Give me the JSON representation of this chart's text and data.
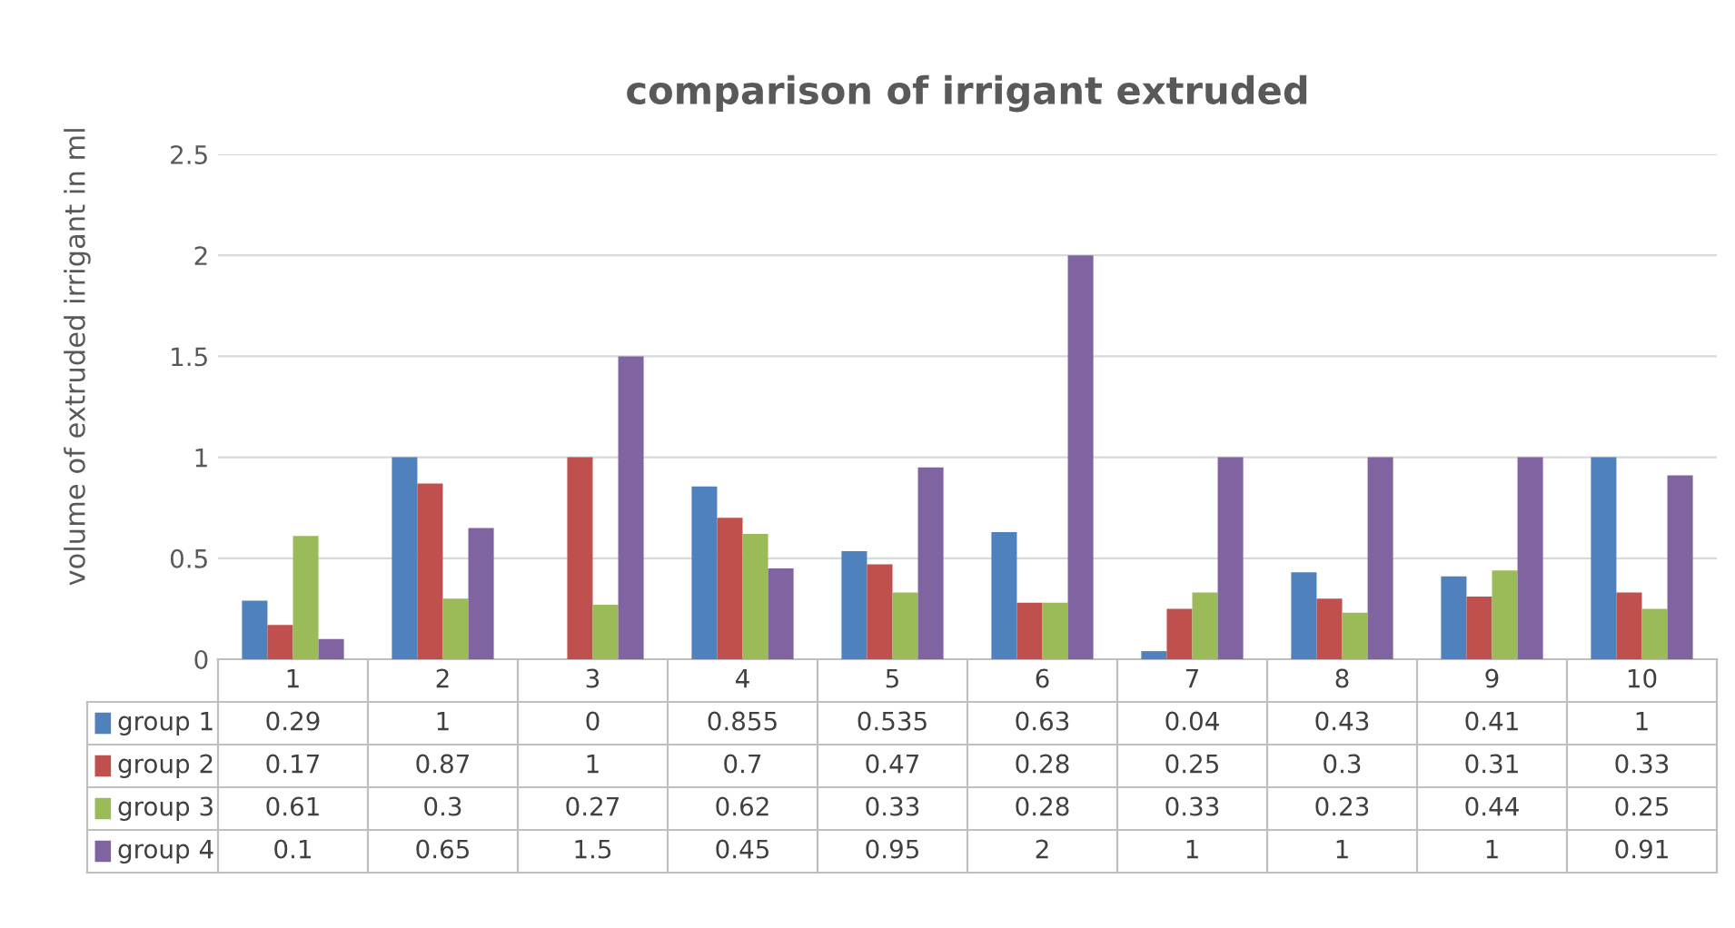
{
  "chart_data": {
    "type": "bar",
    "title": "comparison of irrigant extruded",
    "ylabel": "volume of extruded irrigant in ml",
    "categories": [
      "1",
      "2",
      "3",
      "4",
      "5",
      "6",
      "7",
      "8",
      "9",
      "10"
    ],
    "series": [
      {
        "name": "group 1",
        "color": "#4f81bd",
        "values": [
          0.29,
          1,
          0,
          0.855,
          0.535,
          0.63,
          0.04,
          0.43,
          0.41,
          1
        ]
      },
      {
        "name": "group 2",
        "color": "#c0504d",
        "values": [
          0.17,
          0.87,
          1,
          0.7,
          0.47,
          0.28,
          0.25,
          0.3,
          0.31,
          0.33
        ]
      },
      {
        "name": "group 3",
        "color": "#9bbb59",
        "values": [
          0.61,
          0.3,
          0.27,
          0.62,
          0.33,
          0.28,
          0.33,
          0.23,
          0.44,
          0.25
        ]
      },
      {
        "name": "group 4",
        "color": "#8064a2",
        "values": [
          0.1,
          0.65,
          1.5,
          0.45,
          0.95,
          2,
          1,
          1,
          1,
          0.91
        ]
      }
    ],
    "ylim": [
      0,
      2.5
    ],
    "yticks": [
      0,
      0.5,
      1,
      1.5,
      2,
      2.5
    ],
    "grid": "y",
    "legend": "bottom",
    "data_labels": true
  }
}
